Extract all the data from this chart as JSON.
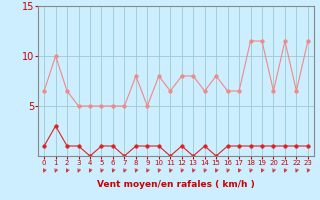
{
  "x": [
    0,
    1,
    2,
    3,
    4,
    5,
    6,
    7,
    8,
    9,
    10,
    11,
    12,
    13,
    14,
    15,
    16,
    17,
    18,
    19,
    20,
    21,
    22,
    23
  ],
  "rafales": [
    6.5,
    10.0,
    6.5,
    5.0,
    5.0,
    5.0,
    5.0,
    5.0,
    8.0,
    5.0,
    8.0,
    6.5,
    8.0,
    8.0,
    6.5,
    8.0,
    6.5,
    6.5,
    11.5,
    11.5,
    6.5,
    11.5,
    6.5,
    11.5
  ],
  "vent_moyen": [
    1.0,
    3.0,
    1.0,
    1.0,
    0.0,
    1.0,
    1.0,
    0.0,
    1.0,
    1.0,
    1.0,
    0.0,
    1.0,
    0.0,
    1.0,
    0.0,
    1.0,
    1.0,
    1.0,
    1.0,
    1.0,
    1.0,
    1.0,
    1.0
  ],
  "xlabel": "Vent moyen/en rafales ( km/h )",
  "ylim": [
    0,
    15
  ],
  "yticks": [
    5,
    10,
    15
  ],
  "xlim": [
    -0.5,
    23.5
  ],
  "bg_color": "#cceeff",
  "grid_color": "#99cccc",
  "line_color_rafales": "#f08888",
  "line_color_vent": "#dd2222",
  "marker_color_rafales": "#f08888",
  "marker_color_vent": "#dd2222",
  "xlabel_color": "#cc0000",
  "tick_color": "#cc0000",
  "arrow_color": "#cc3333"
}
